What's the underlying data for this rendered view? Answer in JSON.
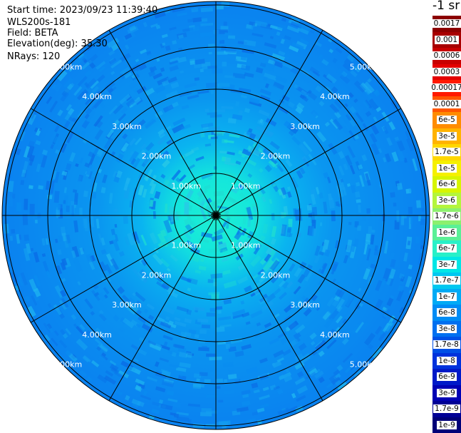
{
  "header": {
    "start_time": "Start time: 2023/09/23 11:39:40",
    "instrument": "WLS200s-181",
    "field": "Field: BETA",
    "elevation": "Elevation(deg): 35.30",
    "nrays": "NRays: 120"
  },
  "range_rings": [
    "1.00km",
    "2.00km",
    "3.00km",
    "4.00km",
    "5.00km"
  ],
  "colorbar": {
    "unit_label": "-1 sr",
    "levels": [
      {
        "label": "0.0017",
        "color": "#8c0000"
      },
      {
        "label": "0.001",
        "color": "#a80000"
      },
      {
        "label": "0.0006",
        "color": "#c80000"
      },
      {
        "label": "0.0003",
        "color": "#e30000"
      },
      {
        "label": "0.00017",
        "color": "#ff1a00"
      },
      {
        "label": "0.0001",
        "color": "#ff5500"
      },
      {
        "label": "6e-5",
        "color": "#ff8c00"
      },
      {
        "label": "3e-5",
        "color": "#ffb300"
      },
      {
        "label": "1.7e-5",
        "color": "#ffd700"
      },
      {
        "label": "1e-5",
        "color": "#f5f000"
      },
      {
        "label": "6e-6",
        "color": "#d7f500"
      },
      {
        "label": "3e-6",
        "color": "#b4f53c"
      },
      {
        "label": "1.7e-6",
        "color": "#8cf06e"
      },
      {
        "label": "1e-6",
        "color": "#5af096"
      },
      {
        "label": "6e-7",
        "color": "#28f0c8"
      },
      {
        "label": "3e-7",
        "color": "#00e6e6"
      },
      {
        "label": "1.7e-7",
        "color": "#00c8f0"
      },
      {
        "label": "1e-7",
        "color": "#00aaf5"
      },
      {
        "label": "6e-8",
        "color": "#008cf5"
      },
      {
        "label": "3e-8",
        "color": "#0070f0"
      },
      {
        "label": "1.7e-8",
        "color": "#0050e6"
      },
      {
        "label": "1e-8",
        "color": "#0032dc"
      },
      {
        "label": "6e-9",
        "color": "#0019c8"
      },
      {
        "label": "3e-9",
        "color": "#0000b4"
      },
      {
        "label": "1.7e-9",
        "color": "#000096"
      },
      {
        "label": "1e-9",
        "color": "#000078"
      }
    ]
  }
}
